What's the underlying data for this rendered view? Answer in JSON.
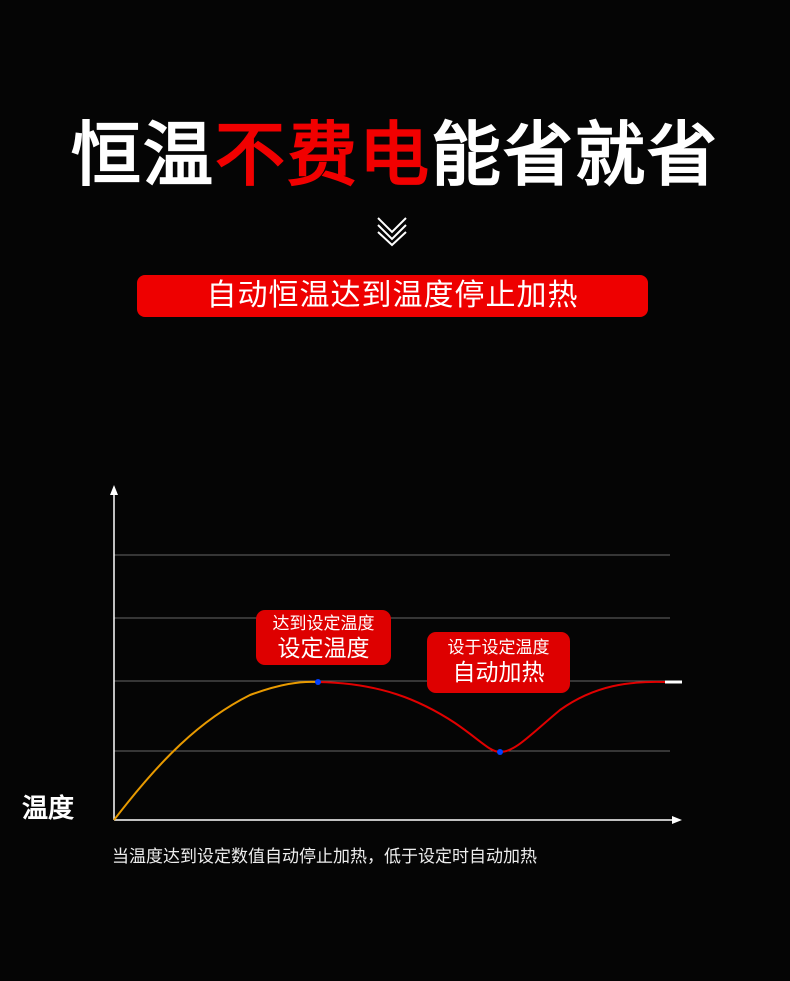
{
  "headline": {
    "part1": "恒温",
    "part2": "不费电",
    "part3": "能省就省"
  },
  "banner": "自动恒温达到温度停止加热",
  "chevron_icon": "double-chevron-down-icon",
  "diagram": {
    "y_axis_label": "温度",
    "callout_reach": {
      "line1": "达到设定温度",
      "line2": "设定温度"
    },
    "callout_below": {
      "line1": "设于设定温度",
      "line2": "自动加热"
    },
    "caption": "当温度达到设定数值自动停止加热，低于设定时自动加热"
  },
  "colors": {
    "accent_red": "#f10000",
    "heating_curve": "#e89a00",
    "holding_curve": "#e00000",
    "markers": "#0040ff"
  }
}
